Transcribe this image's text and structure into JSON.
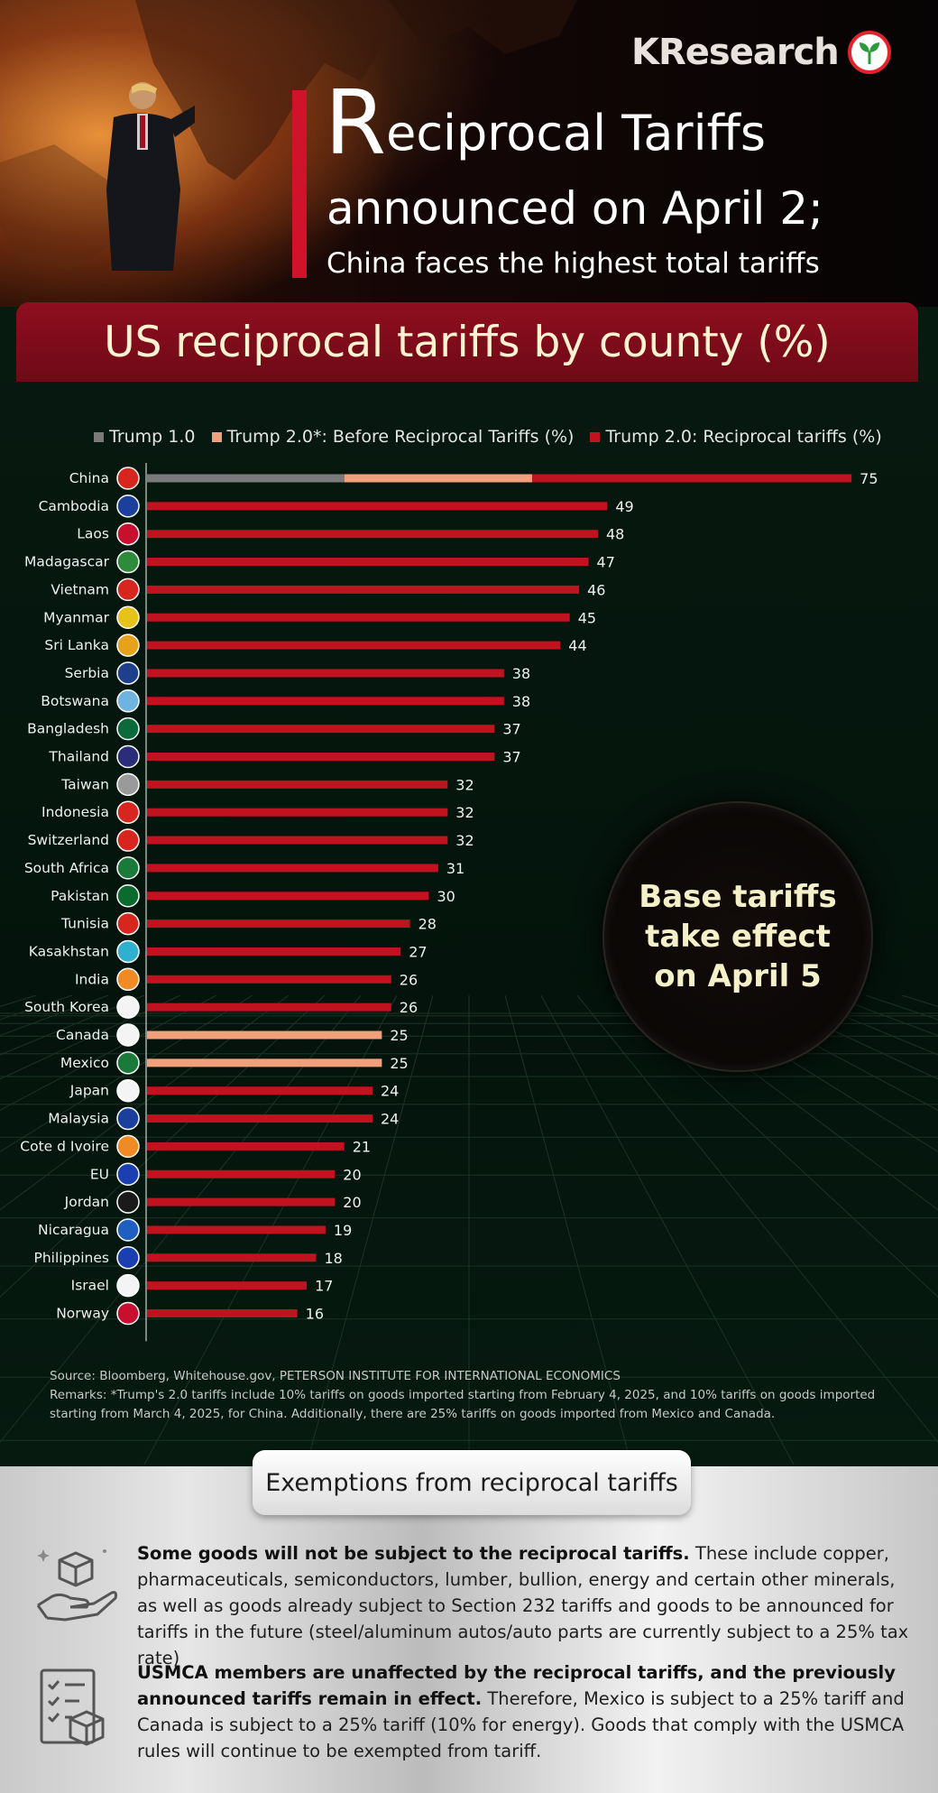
{
  "brand": {
    "name": "KResearch"
  },
  "header": {
    "title_cap": "R",
    "title_rest": "eciprocal Tariffs",
    "title_line2": "announced on April 2;",
    "subtitle": "China faces the highest total tariffs"
  },
  "banner": {
    "text": "US reciprocal tariffs by county (%)"
  },
  "colors": {
    "trump1": "#7a7a7a",
    "trump2_before": "#f0a07a",
    "trump2_reciprocal": "#c1121f",
    "banner": "#8f0e1f"
  },
  "chart_data": {
    "type": "bar",
    "orientation": "horizontal",
    "stacked": true,
    "categories": [
      "China",
      "Cambodia",
      "Laos",
      "Madagascar",
      "Vietnam",
      "Myanmar",
      "Sri Lanka",
      "Serbia",
      "Botswana",
      "Bangladesh",
      "Thailand",
      "Taiwan",
      "Indonesia",
      "Switzerland",
      "South Africa",
      "Pakistan",
      "Tunisia",
      "Kasakhstan",
      "India",
      "South Korea",
      "Canada",
      "Mexico",
      "Japan",
      "Malaysia",
      "Cote d Ivoire",
      "EU",
      "Jordan",
      "Nicaragua",
      "Philippines",
      "Israel",
      "Norway"
    ],
    "series": [
      {
        "name": "Trump 1.0",
        "values": [
          21,
          0,
          0,
          0,
          0,
          0,
          0,
          0,
          0,
          0,
          0,
          0,
          0,
          0,
          0,
          0,
          0,
          0,
          0,
          0,
          0,
          0,
          0,
          0,
          0,
          0,
          0,
          0,
          0,
          0,
          0
        ]
      },
      {
        "name": "Trump 2.0*: Before Reciprocal Tariffs (%)",
        "values": [
          20,
          0,
          0,
          0,
          0,
          0,
          0,
          0,
          0,
          0,
          0,
          0,
          0,
          0,
          0,
          0,
          0,
          0,
          0,
          0,
          25,
          25,
          0,
          0,
          0,
          0,
          0,
          0,
          0,
          0,
          0
        ]
      },
      {
        "name": "Trump 2.0: Reciprocal tariffs (%)",
        "values": [
          34,
          49,
          48,
          47,
          46,
          45,
          44,
          38,
          38,
          37,
          37,
          32,
          32,
          32,
          31,
          30,
          28,
          27,
          26,
          26,
          0,
          0,
          24,
          24,
          21,
          20,
          20,
          19,
          18,
          17,
          16
        ]
      }
    ],
    "totals": [
      75,
      49,
      48,
      47,
      46,
      45,
      44,
      38,
      38,
      37,
      37,
      32,
      32,
      32,
      31,
      30,
      28,
      27,
      26,
      26,
      25,
      25,
      24,
      24,
      21,
      20,
      20,
      19,
      18,
      17,
      16
    ],
    "xlim": [
      0,
      77
    ],
    "legend": "top"
  },
  "callout": {
    "line1": "Base tariffs",
    "line2": "take effect",
    "line3": "on April 5"
  },
  "source": {
    "line1": "Source: Bloomberg, Whitehouse.gov, PETERSON INSTITUTE FOR INTERNATIONAL ECONOMICS",
    "remarks": "Remarks: *Trump's 2.0 tariffs include 10% tariffs on goods imported starting from February 4, 2025, and 10% tariffs on goods imported starting from March 4, 2025, for China. Additionally, there are 25% tariffs on goods imported from Mexico and Canada."
  },
  "exemptions": {
    "title": "Exemptions from reciprocal tariffs",
    "item1_bold": "Some goods will not be subject to the reciprocal tariffs.",
    "item1_text": " These include copper, pharmaceuticals, semiconductors, lumber, bullion, energy and certain other minerals, as well as goods already subject to Section 232 tariffs and goods to be announced for tariffs in the future (steel/aluminum autos/auto parts are currently subject to a 25% tax rate)",
    "item2_bold": "USMCA members are unaffected by the reciprocal tariffs, and the previously announced tariffs remain in effect.",
    "item2_text": "  Therefore, Mexico is subject to a 25% tariff and Canada is subject to a 25% tariff (10% for energy). Goods that comply with the USMCA rules will continue to be exempted from tariff."
  }
}
